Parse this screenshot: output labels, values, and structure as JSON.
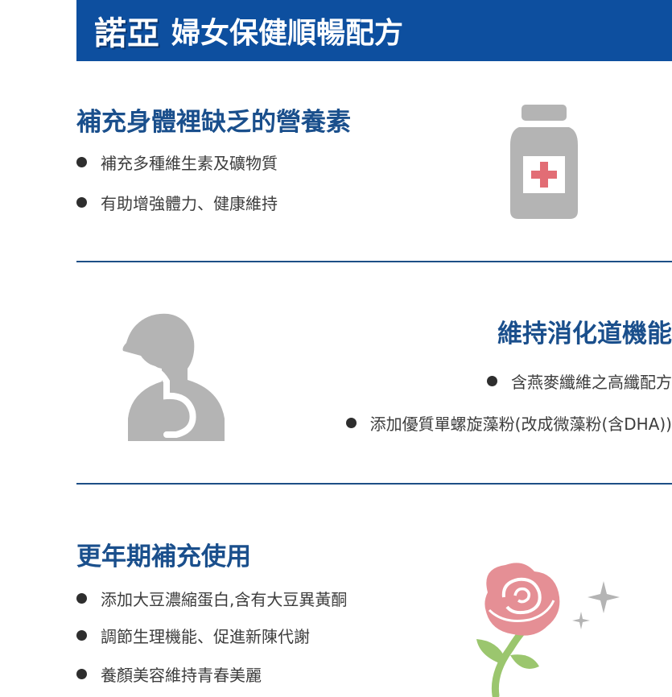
{
  "banner": {
    "brand": "諾亞",
    "title": "婦女保健順暢配方",
    "background_color": "#0d4f9f"
  },
  "sections": [
    {
      "heading": "補充身體裡缺乏的營養素",
      "bullets": [
        "補充多種維生素及礦物質",
        "有助增強體力、健康維持"
      ],
      "icon": "medicine-bottle-icon"
    },
    {
      "heading": "維持消化道機能",
      "bullets": [
        "含燕麥纖維之高纖配方",
        "添加優質單螺旋藻粉(改成微藻粉(含DHA))"
      ],
      "icon": "digestive-system-icon"
    },
    {
      "heading": "更年期補充使用",
      "bullets": [
        "添加大豆濃縮蛋白,含有大豆異黃酮",
        "調節生理機能、促進新陳代謝",
        "養顏美容維持青春美麗"
      ],
      "icon": "rose-icon"
    }
  ],
  "colors": {
    "heading": "#1a4f8c",
    "divider": "#1d4f86",
    "icon_gray": "#b4b4b4",
    "rose_pink": "#e58f95",
    "leaf_green": "#9bc66e"
  }
}
